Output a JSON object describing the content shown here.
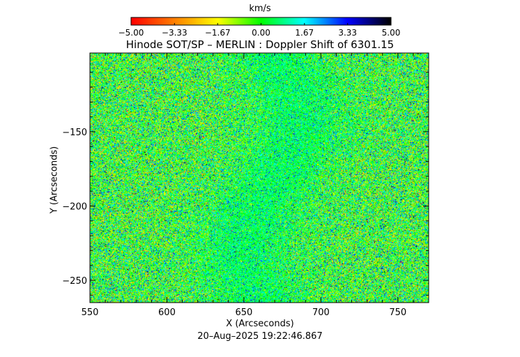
{
  "chart_data": {
    "type": "heatmap",
    "title": "Hinode SOT/SP – MERLIN : Doppler Shift of 6301.15",
    "xlabel": "X (Arcseconds)",
    "ylabel": "Y (Arcseconds)",
    "xlim": [
      550,
      770
    ],
    "ylim": [
      -265,
      -97
    ],
    "x_ticks": [
      550,
      600,
      650,
      700,
      750
    ],
    "x_tick_labels": [
      "550",
      "600",
      "650",
      "700",
      "750"
    ],
    "y_ticks": [
      -150,
      -200,
      -250
    ],
    "y_tick_labels": [
      "−150",
      "−200",
      "−250"
    ],
    "colorbar": {
      "label": "km/s",
      "range": [
        -5.0,
        5.0
      ],
      "ticks": [
        -5.0,
        -3.33,
        -1.67,
        0.0,
        1.67,
        3.33,
        5.0
      ],
      "tick_labels": [
        "−5.00",
        "−3.33",
        "−1.67",
        "0.00",
        "1.67",
        "3.33",
        "5.00"
      ],
      "colors": [
        "#ff0000",
        "#ff8000",
        "#ffff00",
        "#00ff00",
        "#00ffff",
        "#0000ff",
        "#000000"
      ]
    },
    "grid": false
  },
  "timestamp": "20–Aug–2025 19:22:46.867"
}
